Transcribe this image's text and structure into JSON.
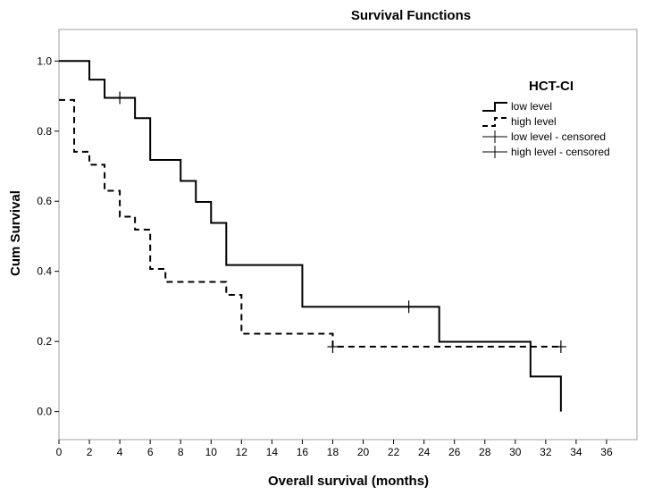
{
  "chart_data": {
    "type": "line",
    "subtype": "kaplan-meier-step",
    "title": "Survival Functions",
    "xlabel": "Overall survival (months)",
    "ylabel": "Cum Survival",
    "xlim": [
      0,
      38
    ],
    "ylim": [
      -0.08,
      1.09
    ],
    "xticks": [
      0,
      2,
      4,
      6,
      8,
      10,
      12,
      14,
      16,
      18,
      20,
      22,
      24,
      26,
      28,
      30,
      32,
      34,
      36
    ],
    "yticks": [
      0.0,
      0.2,
      0.4,
      0.6,
      0.8,
      1.0
    ],
    "ytick_labels": [
      "0.0",
      "0.2",
      "0.4",
      "0.6",
      "0.8",
      "1.0"
    ],
    "legend": {
      "title": "HCT-CI",
      "position": "top-right",
      "entries": [
        "low level",
        "high level",
        "low level - censored",
        "high level - censored"
      ]
    },
    "series": [
      {
        "name": "low level",
        "style": "solid",
        "x": [
          0,
          2,
          3,
          5,
          6,
          8,
          9,
          10,
          11,
          16,
          25,
          31,
          33
        ],
        "y": [
          1.0,
          0.947,
          0.895,
          0.837,
          0.718,
          0.658,
          0.598,
          0.538,
          0.418,
          0.299,
          0.199,
          0.1,
          0.0
        ]
      },
      {
        "name": "high level",
        "style": "dashed",
        "x": [
          0,
          1,
          2,
          3,
          4,
          5,
          6,
          7,
          11,
          12,
          18
        ],
        "y": [
          0.889,
          0.741,
          0.704,
          0.63,
          0.556,
          0.519,
          0.407,
          0.37,
          0.333,
          0.222,
          0.185
        ],
        "x_end": 33
      }
    ],
    "censored": [
      {
        "series": "low level",
        "points": [
          {
            "x": 4,
            "y": 0.895
          },
          {
            "x": 23,
            "y": 0.299
          }
        ]
      },
      {
        "series": "high level",
        "points": [
          {
            "x": 18,
            "y": 0.185
          },
          {
            "x": 33,
            "y": 0.185
          }
        ]
      }
    ]
  }
}
